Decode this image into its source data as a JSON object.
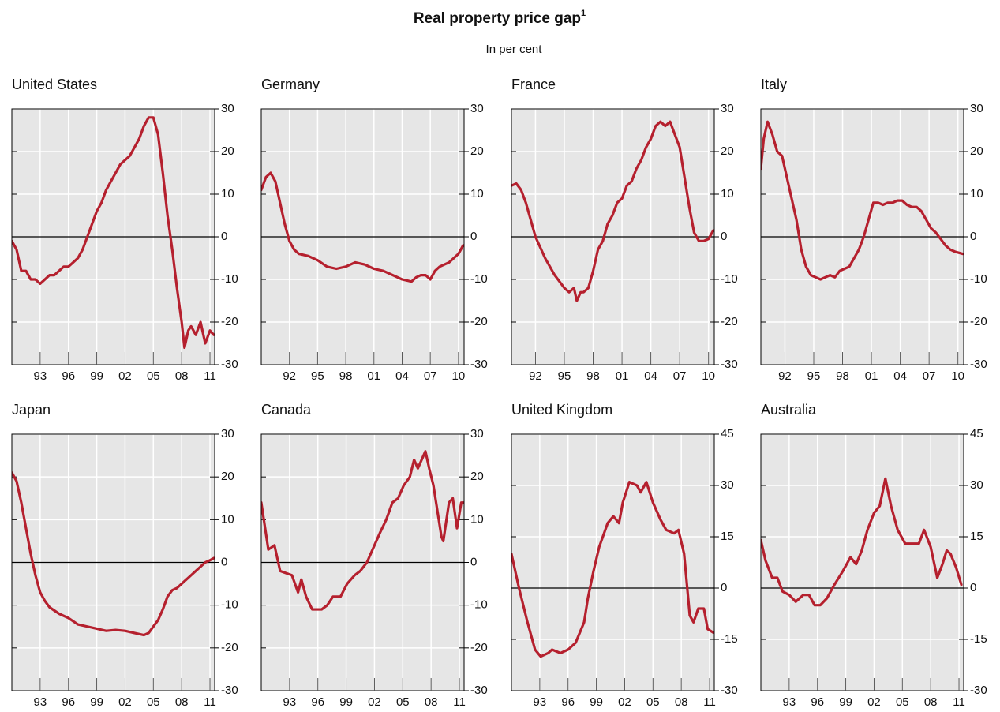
{
  "title": "Real property price gap",
  "title_note": "1",
  "subtitle": "In per cent",
  "chart_data": [
    {
      "type": "line",
      "title": "United States",
      "color": "#b5202e",
      "xlim": [
        1990,
        2011.5
      ],
      "ylim": [
        -30,
        30
      ],
      "yticks": [
        -30,
        -20,
        -10,
        0,
        10,
        20,
        30
      ],
      "grid": true,
      "xticks": [
        {
          "value": 1993,
          "label": "93"
        },
        {
          "value": 1996,
          "label": "96"
        },
        {
          "value": 1999,
          "label": "99"
        },
        {
          "value": 2002,
          "label": "02"
        },
        {
          "value": 2005,
          "label": "05"
        },
        {
          "value": 2008,
          "label": "08"
        },
        {
          "value": 2011,
          "label": "11"
        }
      ],
      "x": [
        1990,
        1990.5,
        1991,
        1991.5,
        1992,
        1992.5,
        1993,
        1993.5,
        1994,
        1994.5,
        1995,
        1995.5,
        1996,
        1996.5,
        1997,
        1997.5,
        1998,
        1998.5,
        1999,
        1999.5,
        2000,
        2000.5,
        2001,
        2001.5,
        2002,
        2002.5,
        2003,
        2003.5,
        2004,
        2004.5,
        2005,
        2005.5,
        2006,
        2006.5,
        2007,
        2007.5,
        2008,
        2008.3,
        2008.7,
        2009,
        2009.5,
        2010,
        2010.5,
        2011,
        2011.4
      ],
      "values": [
        -1,
        -3,
        -8,
        -8,
        -10,
        -10,
        -11,
        -10,
        -9,
        -9,
        -8,
        -7,
        -7,
        -6,
        -5,
        -3,
        0,
        3,
        6,
        8,
        11,
        13,
        15,
        17,
        18,
        19,
        21,
        23,
        26,
        28,
        28,
        24,
        15,
        5,
        -3,
        -12,
        -20,
        -26,
        -22,
        -21,
        -23,
        -20,
        -25,
        -22,
        -23
      ]
    },
    {
      "type": "line",
      "title": "Germany",
      "color": "#b5202e",
      "xlim": [
        1989,
        2010.6
      ],
      "ylim": [
        -30,
        30
      ],
      "yticks": [
        -30,
        -20,
        -10,
        0,
        10,
        20,
        30
      ],
      "grid": true,
      "xticks": [
        {
          "value": 1992,
          "label": "92"
        },
        {
          "value": 1995,
          "label": "95"
        },
        {
          "value": 1998,
          "label": "98"
        },
        {
          "value": 2001,
          "label": "01"
        },
        {
          "value": 2004,
          "label": "04"
        },
        {
          "value": 2007,
          "label": "07"
        },
        {
          "value": 2010,
          "label": "10"
        }
      ],
      "x": [
        1989,
        1989.5,
        1990,
        1990.5,
        1991,
        1991.5,
        1992,
        1992.5,
        1993,
        1994,
        1995,
        1996,
        1997,
        1998,
        1999,
        2000,
        2001,
        2002,
        2003,
        2004,
        2005,
        2005.5,
        2006,
        2006.5,
        2007,
        2007.5,
        2008,
        2009,
        2010,
        2010.5
      ],
      "values": [
        11,
        14,
        15,
        13,
        8,
        3,
        -1,
        -3,
        -4,
        -4.5,
        -5.5,
        -7,
        -7.5,
        -7,
        -6,
        -6.5,
        -7.5,
        -8,
        -9,
        -10,
        -10.5,
        -9.5,
        -9,
        -9,
        -10,
        -8,
        -7,
        -6,
        -4,
        -2
      ]
    },
    {
      "type": "line",
      "title": "France",
      "color": "#b5202e",
      "xlim": [
        1989.5,
        2010.6
      ],
      "ylim": [
        -30,
        30
      ],
      "yticks": [
        -30,
        -20,
        -10,
        0,
        10,
        20,
        30
      ],
      "grid": true,
      "xticks": [
        {
          "value": 1992,
          "label": "92"
        },
        {
          "value": 1995,
          "label": "95"
        },
        {
          "value": 1998,
          "label": "98"
        },
        {
          "value": 2001,
          "label": "01"
        },
        {
          "value": 2004,
          "label": "04"
        },
        {
          "value": 2007,
          "label": "07"
        },
        {
          "value": 2010,
          "label": "10"
        }
      ],
      "x": [
        1989.5,
        1990,
        1990.5,
        1991,
        1991.5,
        1992,
        1993,
        1994,
        1995,
        1995.5,
        1996,
        1996.3,
        1996.7,
        1997,
        1997.5,
        1998,
        1998.5,
        1999,
        1999.5,
        2000,
        2000.5,
        2001,
        2001.5,
        2002,
        2002.5,
        2003,
        2003.5,
        2004,
        2004.5,
        2005,
        2005.5,
        2006,
        2006.5,
        2007,
        2007.5,
        2008,
        2008.5,
        2009,
        2009.5,
        2010,
        2010.5
      ],
      "values": [
        12,
        12.5,
        11,
        8,
        4,
        0,
        -5,
        -9,
        -12,
        -13,
        -12,
        -15,
        -13,
        -13,
        -12,
        -8,
        -3,
        -1,
        3,
        5,
        8,
        9,
        12,
        13,
        16,
        18,
        21,
        23,
        26,
        27,
        26,
        27,
        24,
        21,
        14,
        7,
        1,
        -1,
        -1,
        -0.5,
        1.5
      ]
    },
    {
      "type": "line",
      "title": "Italy",
      "color": "#b5202e",
      "xlim": [
        1989.5,
        2010.6
      ],
      "ylim": [
        -30,
        30
      ],
      "yticks": [
        -30,
        -20,
        -10,
        0,
        10,
        20,
        30
      ],
      "grid": true,
      "xticks": [
        {
          "value": 1992,
          "label": "92"
        },
        {
          "value": 1995,
          "label": "95"
        },
        {
          "value": 1998,
          "label": "98"
        },
        {
          "value": 2001,
          "label": "01"
        },
        {
          "value": 2004,
          "label": "04"
        },
        {
          "value": 2007,
          "label": "07"
        },
        {
          "value": 2010,
          "label": "10"
        }
      ],
      "x": [
        1989.5,
        1989.8,
        1990.2,
        1990.7,
        1991.2,
        1991.7,
        1992.2,
        1992.7,
        1993.2,
        1993.7,
        1994.2,
        1994.7,
        1995.2,
        1995.7,
        1996.2,
        1996.7,
        1997.2,
        1997.7,
        1998.2,
        1998.7,
        1999.2,
        1999.7,
        2000.2,
        2000.7,
        2001.2,
        2001.7,
        2002.2,
        2002.7,
        2003.2,
        2003.7,
        2004.2,
        2004.7,
        2005.2,
        2005.7,
        2006.2,
        2006.7,
        2007.2,
        2007.7,
        2008.2,
        2008.7,
        2009.2,
        2009.7,
        2010.5
      ],
      "values": [
        16,
        23,
        27,
        24,
        20,
        19,
        14,
        9,
        4,
        -3,
        -7,
        -9,
        -9.5,
        -10,
        -9.5,
        -9,
        -9.5,
        -8,
        -7.5,
        -7,
        -5,
        -3,
        0,
        4,
        8,
        8,
        7.5,
        8,
        8,
        8.5,
        8.5,
        7.5,
        7,
        7,
        6,
        4,
        2,
        1,
        -0.5,
        -2,
        -3,
        -3.5,
        -4
      ]
    },
    {
      "type": "line",
      "title": "Japan",
      "color": "#b5202e",
      "xlim": [
        1990,
        2011.5
      ],
      "ylim": [
        -30,
        30
      ],
      "yticks": [
        -30,
        -20,
        -10,
        0,
        10,
        20,
        30
      ],
      "grid": true,
      "xticks": [
        {
          "value": 1993,
          "label": "93"
        },
        {
          "value": 1996,
          "label": "96"
        },
        {
          "value": 1999,
          "label": "99"
        },
        {
          "value": 2002,
          "label": "02"
        },
        {
          "value": 2005,
          "label": "05"
        },
        {
          "value": 2008,
          "label": "08"
        },
        {
          "value": 2011,
          "label": "11"
        }
      ],
      "x": [
        1990,
        1990.5,
        1991,
        1991.5,
        1992,
        1992.5,
        1993,
        1993.5,
        1994,
        1995,
        1996,
        1997,
        1998,
        1999,
        2000,
        2001,
        2002,
        2003,
        2004,
        2004.5,
        2005,
        2005.5,
        2006,
        2006.5,
        2007,
        2007.5,
        2008,
        2008.5,
        2009,
        2009.5,
        2010,
        2010.5,
        2011,
        2011.4
      ],
      "values": [
        21,
        19,
        14,
        8,
        2,
        -3,
        -7,
        -9,
        -10.5,
        -12,
        -13,
        -14.5,
        -15,
        -15.5,
        -16,
        -15.8,
        -16,
        -16.5,
        -17,
        -16.5,
        -15,
        -13.5,
        -11,
        -8,
        -6.5,
        -6,
        -5,
        -4,
        -3,
        -2,
        -1,
        0,
        0.5,
        1
      ]
    },
    {
      "type": "line",
      "title": "Canada",
      "color": "#b5202e",
      "xlim": [
        1990,
        2011.5
      ],
      "ylim": [
        -30,
        30
      ],
      "yticks": [
        -30,
        -20,
        -10,
        0,
        10,
        20,
        30
      ],
      "grid": true,
      "xticks": [
        {
          "value": 1993,
          "label": "93"
        },
        {
          "value": 1996,
          "label": "96"
        },
        {
          "value": 1999,
          "label": "99"
        },
        {
          "value": 2002,
          "label": "02"
        },
        {
          "value": 2005,
          "label": "05"
        },
        {
          "value": 2008,
          "label": "08"
        },
        {
          "value": 2011,
          "label": "11"
        }
      ],
      "x": [
        1990,
        1990.75,
        1991.4,
        1992,
        1993.25,
        1993.9,
        1994.25,
        1994.75,
        1995.4,
        1996.4,
        1997,
        1997.6,
        1998.4,
        1999.1,
        1999.9,
        2000.5,
        2001.2,
        2002,
        2002.6,
        2003.25,
        2003.9,
        2004.5,
        2005.1,
        2005.75,
        2006.2,
        2006.6,
        2007.4,
        2007.8,
        2008.25,
        2009.1,
        2009.3,
        2009.9,
        2010.3,
        2010.75,
        2011.2,
        2011.5
      ],
      "values": [
        14,
        3,
        4,
        -2,
        -3,
        -7,
        -4,
        -8,
        -11,
        -11,
        -10,
        -8,
        -8,
        -5,
        -3,
        -2,
        0,
        4,
        7,
        10,
        14,
        15,
        18,
        20,
        24,
        22,
        26,
        22,
        18,
        6,
        5,
        14,
        15,
        8,
        14,
        14
      ]
    },
    {
      "type": "line",
      "title": "United Kingdom",
      "color": "#b5202e",
      "xlim": [
        1990,
        2011.5
      ],
      "ylim": [
        -30,
        45
      ],
      "yticks": [
        -30,
        -15,
        0,
        15,
        30,
        45
      ],
      "grid": true,
      "xticks": [
        {
          "value": 1993,
          "label": "93"
        },
        {
          "value": 1996,
          "label": "96"
        },
        {
          "value": 1999,
          "label": "99"
        },
        {
          "value": 2002,
          "label": "02"
        },
        {
          "value": 2005,
          "label": "05"
        },
        {
          "value": 2008,
          "label": "08"
        },
        {
          "value": 2011,
          "label": "11"
        }
      ],
      "x": [
        1990,
        1990.8,
        1991.7,
        1992.5,
        1993.1,
        1993.9,
        1994.3,
        1995.2,
        1996,
        1996.8,
        1997.7,
        1998.1,
        1998.7,
        1999.3,
        2000.2,
        2000.8,
        2001.4,
        2001.8,
        2002.5,
        2003.3,
        2003.7,
        2004.3,
        2005,
        2005.8,
        2006.4,
        2007.25,
        2007.7,
        2008.3,
        2008.9,
        2009.3,
        2009.8,
        2010.4,
        2010.8,
        2011.4
      ],
      "values": [
        10,
        0,
        -10,
        -18,
        -20,
        -19,
        -18,
        -19,
        -18,
        -16,
        -10,
        -3,
        5,
        12,
        19,
        21,
        19,
        25,
        31,
        30,
        28,
        31,
        25,
        20,
        17,
        16,
        17,
        10,
        -8,
        -10,
        -6,
        -6,
        -12,
        -13
      ]
    },
    {
      "type": "line",
      "title": "Australia",
      "color": "#b5202e",
      "xlim": [
        1990,
        2011.5
      ],
      "ylim": [
        -30,
        45
      ],
      "yticks": [
        -30,
        -15,
        0,
        15,
        30,
        45
      ],
      "grid": true,
      "xticks": [
        {
          "value": 1993,
          "label": "93"
        },
        {
          "value": 1996,
          "label": "96"
        },
        {
          "value": 1999,
          "label": "99"
        },
        {
          "value": 2002,
          "label": "02"
        },
        {
          "value": 2005,
          "label": "05"
        },
        {
          "value": 2008,
          "label": "08"
        },
        {
          "value": 2011,
          "label": "11"
        }
      ],
      "x": [
        1990,
        1990.5,
        1991.2,
        1991.75,
        1992.3,
        1993,
        1993.7,
        1994.5,
        1995.1,
        1995.7,
        1996.3,
        1997,
        1997.8,
        1998.7,
        1999.5,
        2000.1,
        2000.7,
        2001.3,
        2002,
        2002.6,
        2003.2,
        2003.8,
        2004.5,
        2005.3,
        2006.2,
        2006.75,
        2007.3,
        2008,
        2008.7,
        2009.25,
        2009.7,
        2010.1,
        2010.7,
        2011.25
      ],
      "values": [
        14,
        8,
        3,
        3,
        -1,
        -2,
        -4,
        -2,
        -2,
        -5,
        -5,
        -3,
        1,
        5,
        9,
        7,
        11,
        17,
        22,
        24,
        32,
        24,
        17,
        13,
        13,
        13,
        17,
        12,
        3,
        7,
        11,
        10,
        6,
        1
      ]
    }
  ]
}
